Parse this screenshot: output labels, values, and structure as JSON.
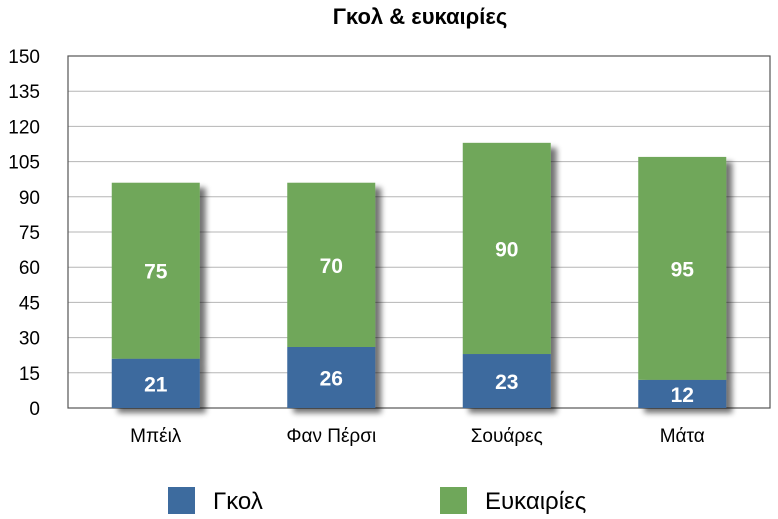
{
  "chart_data": {
    "type": "bar",
    "stacked": true,
    "title": "Γκολ & ευκαιρίες",
    "xlabel": "",
    "ylabel": "",
    "categories": [
      "Μπέιλ",
      "Φαν Πέρσι",
      "Σουάρες",
      "Μάτα"
    ],
    "series": [
      {
        "name": "Γκολ",
        "values": [
          21,
          26,
          23,
          12
        ],
        "color": "#3d6b9e"
      },
      {
        "name": "Ευκαιρίες",
        "values": [
          75,
          70,
          90,
          95
        ],
        "color": "#6fa75a"
      }
    ],
    "ylim": [
      0,
      150
    ],
    "yticks": [
      "0",
      "15",
      "30",
      "45",
      "60",
      "75",
      "90",
      "105",
      "120",
      "135",
      "150"
    ],
    "grid": true,
    "legend_position": "bottom"
  }
}
